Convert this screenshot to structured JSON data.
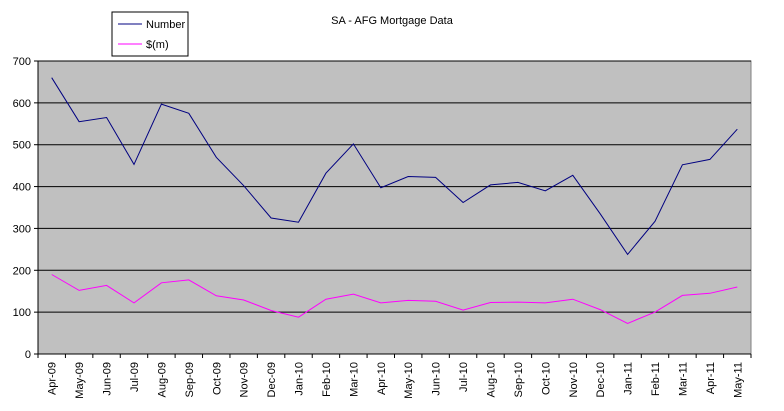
{
  "chart_data": {
    "type": "line",
    "title": "SA - AFG Mortgage Data",
    "xlabel": "",
    "ylabel": "",
    "ylim": [
      0,
      700
    ],
    "yticks": [
      0,
      100,
      200,
      300,
      400,
      500,
      600,
      700
    ],
    "grid": true,
    "legend_position": "top-left",
    "plot_background": "#c0c0c0",
    "categories": [
      "Apr-09",
      "May-09",
      "Jun-09",
      "Jul-09",
      "Aug-09",
      "Sep-09",
      "Oct-09",
      "Nov-09",
      "Dec-09",
      "Jan-10",
      "Feb-10",
      "Mar-10",
      "Apr-10",
      "May-10",
      "Jun-10",
      "Jul-10",
      "Aug-10",
      "Sep-10",
      "Oct-10",
      "Nov-10",
      "Dec-10",
      "Jan-11",
      "Feb-11",
      "Mar-11",
      "Apr-11",
      "May-11"
    ],
    "series": [
      {
        "name": "Number",
        "color": "#000080",
        "values": [
          660,
          555,
          565,
          453,
          597,
          575,
          470,
          402,
          325,
          315,
          432,
          502,
          397,
          424,
          422,
          362,
          404,
          410,
          390,
          427,
          335,
          238,
          317,
          452,
          465,
          537
        ]
      },
      {
        "name": "$(m)",
        "color": "#ff00ff",
        "values": [
          190,
          152,
          164,
          122,
          170,
          177,
          139,
          129,
          104,
          88,
          131,
          143,
          122,
          128,
          126,
          105,
          123,
          124,
          122,
          131,
          106,
          73,
          100,
          140,
          145,
          160
        ]
      }
    ]
  }
}
